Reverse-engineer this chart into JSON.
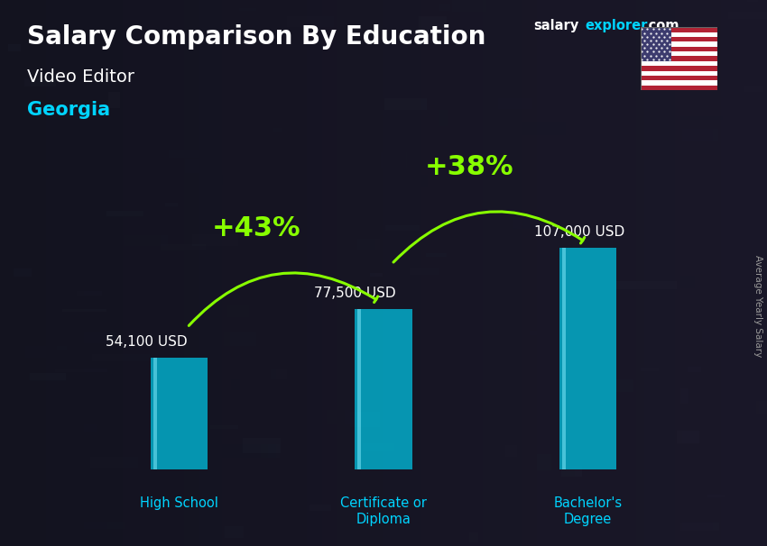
{
  "title_main": "Salary Comparison By Education",
  "title_salary": "salary",
  "title_explorer": "explorer",
  "title_com": ".com",
  "subtitle_job": "Video Editor",
  "subtitle_location": "Georgia",
  "ylabel": "Average Yearly Salary",
  "categories": [
    "High School",
    "Certificate or\nDiploma",
    "Bachelor's\nDegree"
  ],
  "values": [
    54100,
    77500,
    107000
  ],
  "bar_labels": [
    "54,100 USD",
    "77,500 USD",
    "107,000 USD"
  ],
  "pct_labels": [
    "+43%",
    "+38%"
  ],
  "bar_color": "#00c8e8",
  "bar_alpha": 0.72,
  "arrow_color": "#88ff00",
  "title_color": "#ffffff",
  "subtitle_job_color": "#ffffff",
  "subtitle_loc_color": "#00d4ff",
  "salary_text_color": "#ffffff",
  "pct_color": "#88ff00",
  "ylabel_color": "#aaaaaa",
  "bg_color": "#1a1a2e",
  "bar_width": 0.28,
  "ylim_max": 145000,
  "figsize": [
    8.5,
    6.06
  ],
  "dpi": 100,
  "salary_label_fontsize": 11,
  "pct_fontsize": 22,
  "cat_fontsize": 10.5
}
